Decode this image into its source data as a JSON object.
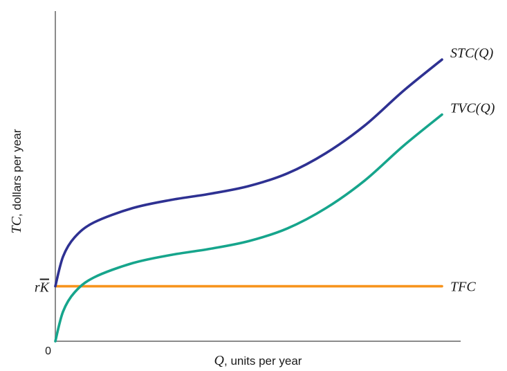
{
  "chart_data": {
    "type": "line",
    "title": "",
    "xlabel": {
      "var": "Q",
      "rest": ", units per year"
    },
    "ylabel": {
      "var": "TC",
      "rest": ", dollars per year"
    },
    "origin_label": "0",
    "y_tick_label": "rK̄",
    "colors": {
      "axis": "#8a8a8a",
      "stc": "#2e3192",
      "tvc": "#16a58c",
      "tfc": "#f7941d"
    },
    "series": [
      {
        "name": "STC(Q)",
        "color": "#2e3192",
        "points": [
          [
            0,
            1.0
          ],
          [
            0.02,
            1.54
          ],
          [
            0.05,
            1.89
          ],
          [
            0.1,
            2.16
          ],
          [
            0.2,
            2.42
          ],
          [
            0.3,
            2.57
          ],
          [
            0.4,
            2.68
          ],
          [
            0.5,
            2.82
          ],
          [
            0.6,
            3.05
          ],
          [
            0.7,
            3.42
          ],
          [
            0.8,
            3.92
          ],
          [
            0.9,
            4.55
          ],
          [
            1.0,
            5.12
          ]
        ]
      },
      {
        "name": "TVC(Q)",
        "color": "#16a58c",
        "points": [
          [
            0,
            0.0
          ],
          [
            0.02,
            0.54
          ],
          [
            0.05,
            0.89
          ],
          [
            0.1,
            1.16
          ],
          [
            0.2,
            1.42
          ],
          [
            0.3,
            1.57
          ],
          [
            0.4,
            1.68
          ],
          [
            0.5,
            1.82
          ],
          [
            0.6,
            2.05
          ],
          [
            0.7,
            2.42
          ],
          [
            0.8,
            2.92
          ],
          [
            0.9,
            3.55
          ],
          [
            1.0,
            4.12
          ]
        ]
      },
      {
        "name": "TFC",
        "color": "#f7941d",
        "points": [
          [
            0,
            1.0
          ],
          [
            1.0,
            1.0
          ]
        ]
      }
    ],
    "xlim": [
      0,
      1.15
    ],
    "ylim": [
      0,
      5.8
    ],
    "grid": false,
    "legend": "none"
  }
}
